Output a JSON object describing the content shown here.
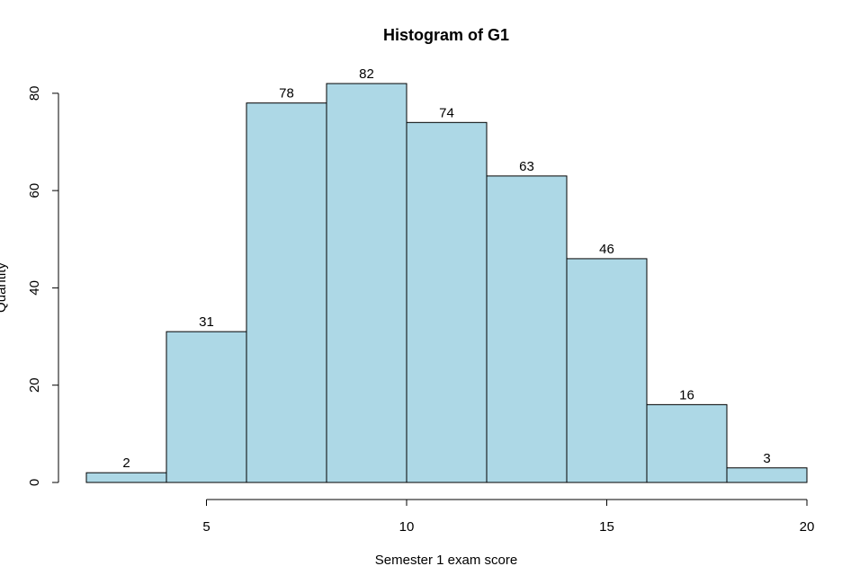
{
  "chart_data": {
    "type": "bar",
    "title": "Histogram of G1",
    "xlabel": "Semester 1 exam score",
    "ylabel": "Quantity",
    "bins": [
      {
        "start": 2,
        "end": 4,
        "value": 2
      },
      {
        "start": 4,
        "end": 6,
        "value": 31
      },
      {
        "start": 6,
        "end": 8,
        "value": 78
      },
      {
        "start": 8,
        "end": 10,
        "value": 82
      },
      {
        "start": 10,
        "end": 12,
        "value": 74
      },
      {
        "start": 12,
        "end": 14,
        "value": 63
      },
      {
        "start": 14,
        "end": 16,
        "value": 46
      },
      {
        "start": 16,
        "end": 18,
        "value": 16
      },
      {
        "start": 18,
        "end": 20,
        "value": 3
      }
    ],
    "xticks": [
      5,
      10,
      15,
      20
    ],
    "yticks": [
      0,
      20,
      40,
      60,
      80
    ],
    "xlim": [
      2,
      20
    ],
    "ylim": [
      0,
      82
    ],
    "bar_color": "#add8e6",
    "grid": false,
    "legend": "none"
  }
}
